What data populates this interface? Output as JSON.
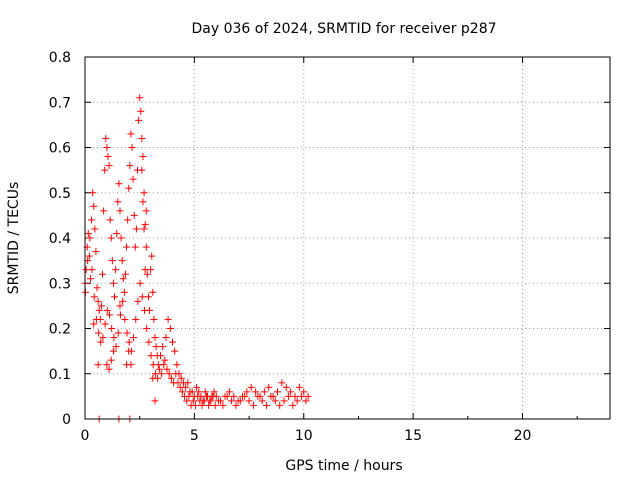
{
  "chart_data": {
    "type": "scatter",
    "title": "Day 036 of 2024, SRMTID for receiver p287",
    "xlabel": "GPS time / hours",
    "ylabel": "SRMTID / TECUs",
    "xlim": [
      0,
      24
    ],
    "ylim": [
      0,
      0.8
    ],
    "xticks": [
      0,
      5,
      10,
      15,
      20
    ],
    "xtick_labels": [
      "0",
      "5",
      "10",
      "15",
      "20"
    ],
    "yticks": [
      0,
      0.1,
      0.2,
      0.3,
      0.4,
      0.5,
      0.6,
      0.7,
      0.8
    ],
    "ytick_labels": [
      "0",
      "0.1",
      "0.2",
      "0.3",
      "0.4",
      "0.5",
      "0.6",
      "0.7",
      "0.8"
    ],
    "grid": true,
    "marker": "+",
    "color": "#ff0000",
    "series": [
      {
        "name": "SRMTID",
        "x": [
          0.0,
          0.05,
          0.1,
          0.15,
          0.2,
          0.25,
          0.3,
          0.35,
          0.4,
          0.45,
          0.5,
          0.55,
          0.6,
          0.65,
          0.7,
          0.75,
          0.8,
          0.85,
          0.9,
          0.95,
          1.0,
          1.05,
          1.1,
          1.15,
          1.2,
          1.25,
          1.3,
          1.35,
          1.4,
          1.45,
          1.5,
          1.55,
          1.6,
          1.65,
          1.7,
          1.75,
          1.8,
          1.85,
          1.9,
          1.95,
          2.0,
          2.05,
          2.1,
          2.15,
          2.2,
          2.25,
          2.3,
          2.35,
          2.4,
          2.45,
          2.5,
          2.55,
          2.6,
          2.65,
          2.7,
          2.75,
          2.8,
          2.85,
          2.9,
          2.95,
          3.0,
          3.05,
          3.1,
          3.15,
          3.2,
          3.25,
          3.3,
          3.35,
          3.4,
          3.5,
          3.6,
          3.7,
          3.8,
          3.9,
          4.0,
          4.1,
          4.2,
          4.3,
          4.4,
          4.5,
          4.6,
          4.7,
          4.8,
          4.9,
          5.0,
          5.1,
          5.2,
          5.3,
          5.4,
          5.5,
          5.6,
          5.7,
          5.8,
          5.9,
          6.0,
          6.2,
          6.4,
          6.6,
          6.8,
          7.0,
          7.2,
          7.4,
          7.6,
          7.8,
          8.0,
          8.2,
          8.4,
          8.6,
          8.8,
          9.0,
          9.2,
          9.4,
          9.6,
          9.8,
          10.0,
          10.2,
          0.02,
          0.12,
          0.22,
          0.32,
          0.42,
          0.52,
          0.62,
          0.72,
          0.82,
          0.92,
          1.02,
          1.12,
          1.22,
          1.32,
          1.42,
          1.52,
          1.62,
          1.72,
          1.82,
          1.92,
          2.02,
          2.12,
          2.22,
          2.32,
          2.42,
          2.52,
          2.62,
          2.72,
          2.82,
          2.92,
          3.02,
          3.12,
          3.22,
          3.32,
          3.45,
          3.55,
          3.65,
          3.75,
          3.85,
          3.95,
          4.05,
          4.15,
          4.25,
          4.35,
          4.45,
          4.55,
          4.65,
          4.75,
          4.85,
          4.95,
          5.05,
          5.15,
          5.25,
          5.35,
          5.45,
          5.55,
          5.65,
          5.75,
          5.85,
          5.95,
          6.1,
          6.3,
          6.5,
          6.7,
          6.9,
          7.1,
          7.3,
          7.5,
          7.7,
          7.9,
          8.1,
          8.3,
          8.5,
          8.7,
          8.9,
          9.1,
          9.3,
          9.5,
          9.7,
          9.9,
          10.1,
          1.0,
          1.1,
          1.6,
          2.1,
          2.7,
          2.75,
          2.8,
          0.4,
          0.6,
          1.2,
          1.3,
          1.9,
          2.0,
          2.6,
          2.65,
          3.1,
          3.2,
          0.65,
          1.55,
          2.05
        ],
        "y": [
          0.3,
          0.33,
          0.38,
          0.41,
          0.36,
          0.31,
          0.44,
          0.5,
          0.47,
          0.42,
          0.37,
          0.29,
          0.26,
          0.24,
          0.22,
          0.25,
          0.32,
          0.46,
          0.55,
          0.62,
          0.6,
          0.58,
          0.56,
          0.44,
          0.4,
          0.35,
          0.3,
          0.27,
          0.33,
          0.41,
          0.48,
          0.52,
          0.46,
          0.4,
          0.35,
          0.31,
          0.28,
          0.32,
          0.38,
          0.44,
          0.51,
          0.56,
          0.63,
          0.6,
          0.53,
          0.45,
          0.38,
          0.42,
          0.55,
          0.66,
          0.71,
          0.68,
          0.62,
          0.58,
          0.5,
          0.43,
          0.38,
          0.32,
          0.27,
          0.24,
          0.33,
          0.36,
          0.28,
          0.22,
          0.18,
          0.16,
          0.14,
          0.12,
          0.11,
          0.1,
          0.12,
          0.18,
          0.22,
          0.2,
          0.17,
          0.15,
          0.12,
          0.1,
          0.09,
          0.08,
          0.07,
          0.08,
          0.06,
          0.06,
          0.05,
          0.07,
          0.06,
          0.05,
          0.04,
          0.06,
          0.05,
          0.04,
          0.05,
          0.06,
          0.05,
          0.04,
          0.05,
          0.06,
          0.05,
          0.04,
          0.05,
          0.06,
          0.07,
          0.06,
          0.05,
          0.06,
          0.07,
          0.05,
          0.06,
          0.08,
          0.07,
          0.06,
          0.05,
          0.07,
          0.06,
          0.05,
          0.28,
          0.35,
          0.4,
          0.33,
          0.27,
          0.22,
          0.19,
          0.17,
          0.18,
          0.21,
          0.24,
          0.23,
          0.2,
          0.18,
          0.16,
          0.19,
          0.23,
          0.26,
          0.22,
          0.19,
          0.17,
          0.15,
          0.18,
          0.22,
          0.26,
          0.3,
          0.27,
          0.24,
          0.2,
          0.17,
          0.14,
          0.12,
          0.1,
          0.09,
          0.14,
          0.16,
          0.13,
          0.11,
          0.1,
          0.09,
          0.08,
          0.1,
          0.08,
          0.07,
          0.06,
          0.05,
          0.04,
          0.05,
          0.03,
          0.04,
          0.03,
          0.05,
          0.04,
          0.03,
          0.04,
          0.05,
          0.03,
          0.04,
          0.05,
          0.03,
          0.04,
          0.03,
          0.05,
          0.04,
          0.03,
          0.04,
          0.05,
          0.04,
          0.03,
          0.05,
          0.04,
          0.03,
          0.05,
          0.04,
          0.03,
          0.04,
          0.05,
          0.03,
          0.04,
          0.05,
          0.04,
          0.12,
          0.11,
          0.25,
          0.12,
          0.42,
          0.33,
          0.46,
          0.21,
          0.12,
          0.13,
          0.15,
          0.12,
          0.15,
          0.55,
          0.48,
          0.09,
          0.04,
          0.0,
          0.0,
          0.0
        ]
      }
    ]
  }
}
